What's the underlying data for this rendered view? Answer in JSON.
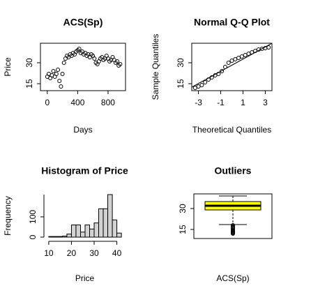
{
  "chart_data": [
    {
      "type": "scatter",
      "title": "ACS(Sp)",
      "x_label": "Days",
      "y_label": "Price",
      "x": [
        0,
        20,
        40,
        60,
        80,
        100,
        120,
        140,
        160,
        180,
        200,
        220,
        240,
        260,
        280,
        300,
        320,
        340,
        360,
        380,
        400,
        420,
        440,
        460,
        480,
        500,
        520,
        540,
        560,
        580,
        600,
        620,
        640,
        660,
        680,
        700,
        720,
        740,
        760,
        780,
        800,
        820,
        840,
        860,
        880,
        900,
        920,
        940,
        960
      ],
      "values": [
        20,
        22,
        19,
        21,
        24,
        20,
        22,
        25,
        17,
        13,
        22,
        30,
        33,
        35,
        34,
        36,
        35,
        37,
        36,
        38,
        39,
        40,
        37,
        38,
        36,
        37,
        35,
        36,
        34,
        36,
        35,
        33,
        30,
        29,
        31,
        33,
        34,
        32,
        33,
        35,
        33,
        31,
        32,
        34,
        32,
        30,
        31,
        28,
        29
      ],
      "xlim": [
        -90,
        1030
      ],
      "ylim": [
        10,
        44
      ],
      "xticks": [
        0,
        400,
        800
      ],
      "yticks": [
        15,
        30
      ],
      "color": "#000000"
    },
    {
      "type": "qq",
      "title": "Normal Q-Q Plot",
      "x_label": "Theoretical Quantiles",
      "y_label": "Sample Quantiles",
      "x": [
        -3.3,
        -3.0,
        -2.7,
        -2.4,
        -2.1,
        -1.8,
        -1.5,
        -1.2,
        -0.9,
        -0.6,
        -0.3,
        0,
        0.3,
        0.6,
        0.9,
        1.2,
        1.5,
        1.8,
        2.1,
        2.4,
        2.7,
        3.0,
        3.3
      ],
      "values": [
        12,
        13,
        14,
        16,
        18,
        19.5,
        21,
        22,
        24,
        27,
        30,
        31.5,
        32.5,
        33.5,
        34.5,
        35.5,
        36.5,
        37.5,
        38.5,
        39.5,
        40,
        40.5,
        41
      ],
      "line": {
        "x": [
          -3.6,
          3.6
        ],
        "y": [
          12.5,
          44
        ]
      },
      "xlim": [
        -3.6,
        3.6
      ],
      "ylim": [
        10,
        44
      ],
      "xticks": [
        -3,
        -1,
        1,
        3
      ],
      "yticks": [
        15,
        30
      ],
      "color": "#000000"
    },
    {
      "type": "histogram",
      "title": "Histogram of Price",
      "x_label": "Price",
      "y_label": "Frequency",
      "bins": [
        10,
        12,
        14,
        16,
        18,
        20,
        22,
        24,
        26,
        28,
        30,
        32,
        34,
        36,
        38,
        40,
        42
      ],
      "values": [
        3,
        3,
        3,
        5,
        15,
        60,
        60,
        25,
        60,
        40,
        70,
        140,
        140,
        210,
        85,
        20
      ],
      "xlim": [
        8.5,
        43.2
      ],
      "ylim": [
        0,
        210
      ],
      "xticks": [
        10,
        20,
        30,
        40
      ],
      "yticks": [
        0,
        100
      ],
      "color": "#d3d3d3"
    },
    {
      "type": "box",
      "title": "Outliers",
      "x_label": "ACS(Sp)",
      "whisker_low": 18.5,
      "q1": 29,
      "median": 32,
      "q3": 35,
      "whisker_high": 39,
      "outliers": [
        18,
        17,
        16.5,
        16,
        15,
        14,
        13.5,
        13,
        12.5,
        12
      ],
      "ylim": [
        8.5,
        40.5
      ],
      "yticks": [
        15,
        30
      ],
      "color": "#ffff00"
    }
  ]
}
